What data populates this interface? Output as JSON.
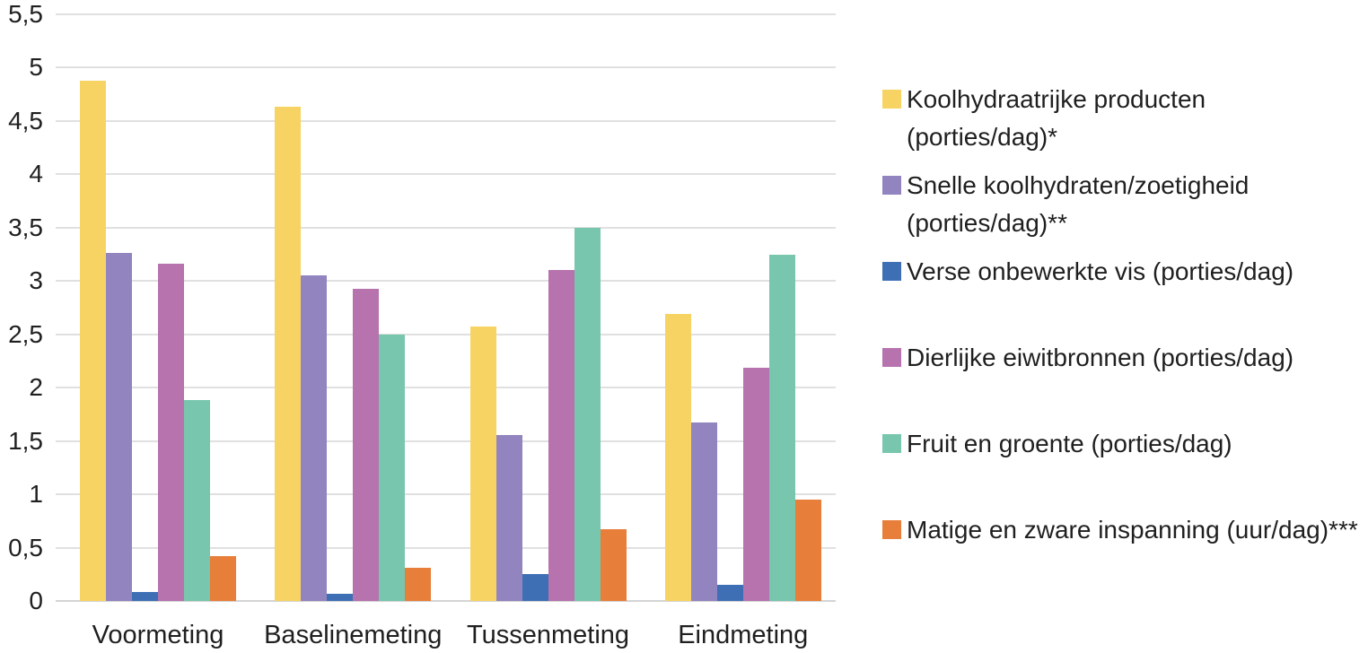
{
  "figure": {
    "background": "#FFFFFF",
    "text_color": "#1F1F1F",
    "gridline_color": "#E0E0E0",
    "axis_line_color": "#D4D4D4"
  },
  "chart_data": {
    "type": "bar",
    "title": "",
    "xlabel": "",
    "ylabel": "",
    "categories": [
      "Voormeting",
      "Baselinemeting",
      "Tussenmeting",
      "Eindmeting"
    ],
    "series": [
      {
        "name": "Koolhydraatrijke producten (porties/dag)*",
        "color": "#F7D364",
        "values": [
          4.88,
          4.63,
          2.57,
          2.69
        ]
      },
      {
        "name": "Snelle koolhydraten/zoetigheid (porties/dag)**",
        "color": "#9284BF",
        "values": [
          3.26,
          3.05,
          1.56,
          1.67
        ]
      },
      {
        "name": "Verse onbewerkte vis (porties/dag)",
        "color": "#3E6FB5",
        "values": [
          0.08,
          0.07,
          0.25,
          0.15
        ]
      },
      {
        "name": "Dierlijke eiwitbronnen (porties/dag)",
        "color": "#B673AE",
        "values": [
          3.16,
          2.93,
          3.1,
          2.19
        ]
      },
      {
        "name": "Fruit en groente (porties/dag)",
        "color": "#77C6AD",
        "values": [
          1.88,
          2.5,
          3.5,
          3.25
        ]
      },
      {
        "name": "Matige en zware inspanning (uur/dag)***",
        "color": "#E77E3A",
        "values": [
          0.42,
          0.31,
          0.67,
          0.95
        ]
      }
    ],
    "ylim": [
      0,
      5.5
    ],
    "ytick_step": 0.5,
    "ytick_labels": [
      "0",
      "0,5",
      "1",
      "1,5",
      "2",
      "2,5",
      "3",
      "3,5",
      "4",
      "4,5",
      "5",
      "5,5"
    ],
    "decimal_separator": ",",
    "grid": true,
    "legend_position": "right"
  },
  "legend": {
    "items": [
      {
        "lines": [
          "Koolhydraatrijke producten",
          "(porties/dag)*"
        ],
        "color": "#F7D364"
      },
      {
        "lines": [
          "Snelle koolhydraten/zoetigheid",
          "(porties/dag)**"
        ],
        "color": "#9284BF"
      },
      {
        "lines": [
          "Verse onbewerkte vis (porties/dag)"
        ],
        "color": "#3E6FB5"
      },
      {
        "lines": [
          "Dierlijke eiwitbronnen (porties/dag)"
        ],
        "color": "#B673AE"
      },
      {
        "lines": [
          "Fruit en groente (porties/dag)"
        ],
        "color": "#77C6AD"
      },
      {
        "lines": [
          "Matige en zware inspanning (uur/dag)***"
        ],
        "color": "#E77E3A"
      }
    ]
  }
}
